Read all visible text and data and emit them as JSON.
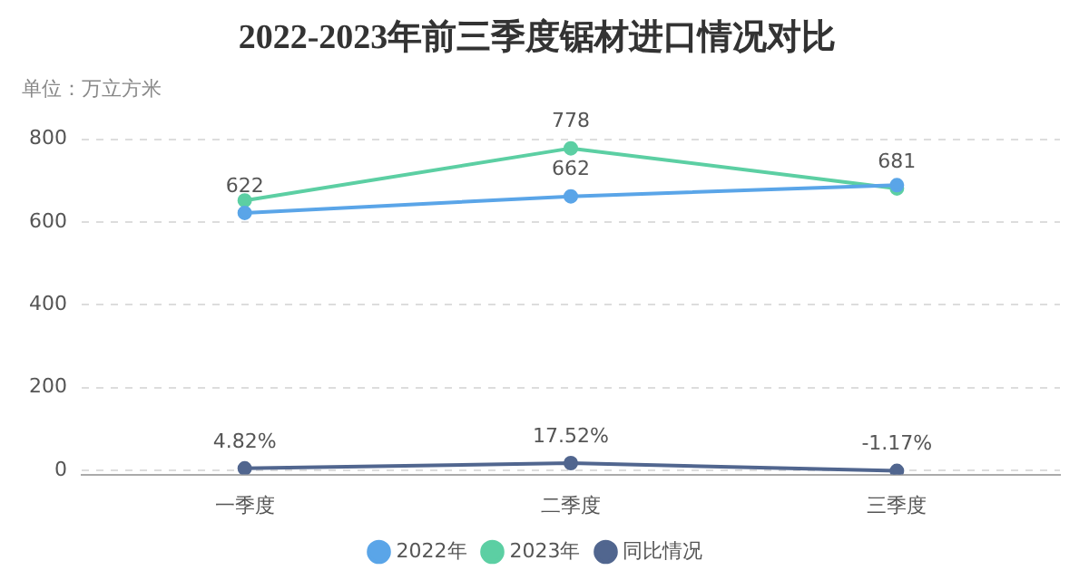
{
  "chart_data": {
    "type": "line",
    "title": "2022-2023年前三季度锯材进口情况对比",
    "ylabel": "单位：万立方米",
    "categories": [
      "一季度",
      "二季度",
      "三季度"
    ],
    "series": [
      {
        "name": "2022年",
        "color": "#5aa5e8",
        "values": [
          622,
          662,
          689
        ],
        "value_labels": [
          "622",
          "662",
          null
        ]
      },
      {
        "name": "2023年",
        "color": "#5ccfa3",
        "values": [
          652,
          778,
          681
        ],
        "value_labels": [
          null,
          "778",
          "681"
        ]
      },
      {
        "name": "同比情况",
        "color": "#51668f",
        "values": [
          4.82,
          17.52,
          -1.17
        ],
        "value_labels": [
          "4.82%",
          "17.52%",
          "-1.17%"
        ]
      }
    ],
    "ylim": [
      -10,
      800
    ],
    "yticks": [
      0,
      200,
      400,
      600,
      800
    ],
    "grid": "y",
    "legend": "bottom",
    "marker": "circle",
    "line_style": "solid"
  }
}
